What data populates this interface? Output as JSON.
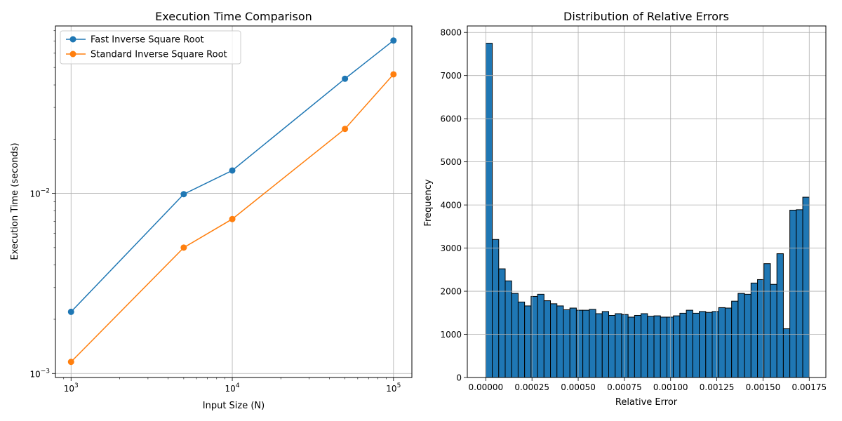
{
  "chart_data": [
    {
      "type": "line",
      "title": "Execution Time Comparison",
      "xlabel": "Input Size (N)",
      "ylabel": "Execution Time (seconds)",
      "xscale": "log",
      "yscale": "log",
      "xlim": [
        800,
        130000
      ],
      "ylim": [
        0.00095,
        0.085
      ],
      "grid": true,
      "legend": "top-left",
      "x": [
        1000,
        5000,
        10000,
        50000,
        100000
      ],
      "xticks": [
        {
          "value": 1000,
          "base": "10",
          "exp": "3"
        },
        {
          "value": 10000,
          "base": "10",
          "exp": "4"
        },
        {
          "value": 100000,
          "base": "10",
          "exp": "5"
        }
      ],
      "yticks": [
        {
          "value": 0.001,
          "base": "10",
          "exp": "−3"
        },
        {
          "value": 0.01,
          "base": "10",
          "exp": "−2"
        }
      ],
      "series": [
        {
          "name": "Fast Inverse Square Root",
          "color": "#1f77b4",
          "values": [
            0.0022,
            0.0099,
            0.0134,
            0.0433,
            0.0706
          ]
        },
        {
          "name": "Standard Inverse Square Root",
          "color": "#ff7f0e",
          "values": [
            0.00116,
            0.005,
            0.0072,
            0.0228,
            0.0458
          ]
        }
      ]
    },
    {
      "type": "bar",
      "title": "Distribution of Relative Errors",
      "xlabel": "Relative Error",
      "ylabel": "Frequency",
      "xlim": [
        -0.0001,
        0.00184
      ],
      "ylim": [
        0,
        8150
      ],
      "grid": true,
      "bar_color": "#1f77b4",
      "bin_start": 0.0,
      "bin_width": 3.5e-05,
      "values": [
        7750,
        3200,
        2520,
        2240,
        1950,
        1750,
        1660,
        1880,
        1930,
        1780,
        1710,
        1660,
        1570,
        1610,
        1560,
        1560,
        1580,
        1480,
        1530,
        1440,
        1480,
        1460,
        1400,
        1440,
        1480,
        1420,
        1430,
        1400,
        1400,
        1430,
        1490,
        1560,
        1490,
        1530,
        1510,
        1530,
        1620,
        1610,
        1770,
        1950,
        1930,
        2190,
        2270,
        2640,
        2160,
        2870,
        1130,
        3880,
        3890,
        4180
      ],
      "xticks": [
        {
          "value": 0.0,
          "label": "0.00000"
        },
        {
          "value": 0.00025,
          "label": "0.00025"
        },
        {
          "value": 0.0005,
          "label": "0.00050"
        },
        {
          "value": 0.00075,
          "label": "0.00075"
        },
        {
          "value": 0.001,
          "label": "0.00100"
        },
        {
          "value": 0.00125,
          "label": "0.00125"
        },
        {
          "value": 0.0015,
          "label": "0.00150"
        },
        {
          "value": 0.00175,
          "label": "0.00175"
        }
      ],
      "yticks": [
        {
          "value": 0,
          "label": "0"
        },
        {
          "value": 1000,
          "label": "1000"
        },
        {
          "value": 2000,
          "label": "2000"
        },
        {
          "value": 3000,
          "label": "3000"
        },
        {
          "value": 4000,
          "label": "4000"
        },
        {
          "value": 5000,
          "label": "5000"
        },
        {
          "value": 6000,
          "label": "6000"
        },
        {
          "value": 7000,
          "label": "7000"
        },
        {
          "value": 8000,
          "label": "8000"
        }
      ]
    }
  ]
}
